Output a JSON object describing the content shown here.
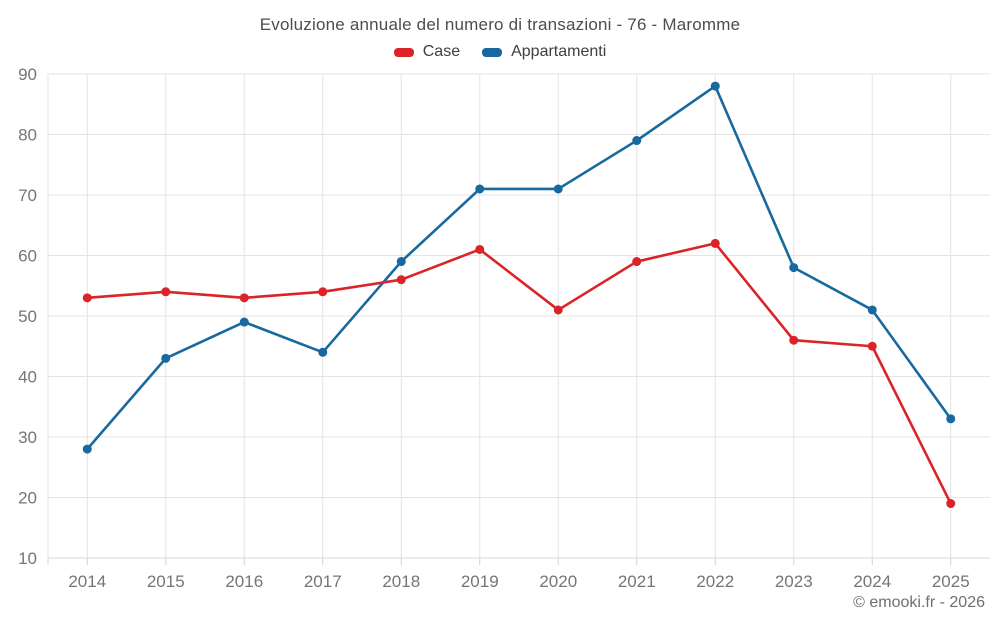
{
  "chart_data": {
    "type": "line",
    "title": "Evoluzione annuale del numero di transazioni - 76 - Maromme",
    "categories": [
      "2014",
      "2015",
      "2016",
      "2017",
      "2018",
      "2019",
      "2020",
      "2021",
      "2022",
      "2023",
      "2024",
      "2025"
    ],
    "series": [
      {
        "name": "Case",
        "color": "#da2428",
        "values": [
          53,
          54,
          53,
          54,
          56,
          61,
          51,
          59,
          62,
          46,
          45,
          19
        ]
      },
      {
        "name": "Appartamenti",
        "color": "#17699f",
        "values": [
          28,
          43,
          49,
          44,
          59,
          71,
          71,
          79,
          88,
          58,
          51,
          33
        ]
      }
    ],
    "ylim": [
      10,
      90
    ],
    "ytick_step": 10,
    "grid": true,
    "legend_position": "top",
    "xlabel": "",
    "ylabel": ""
  },
  "footer": {
    "copyright": "© emooki.fr - 2026"
  },
  "colors": {
    "background": "#ffffff",
    "grid": "#e4e4e4",
    "axis_line": "#d9d9d9",
    "tick": "#d0d0d0",
    "axis_text": "#757575",
    "title_text": "#4d4d4d",
    "legend_text": "#3f3f3f",
    "copyright_text": "#6f6f6f"
  }
}
